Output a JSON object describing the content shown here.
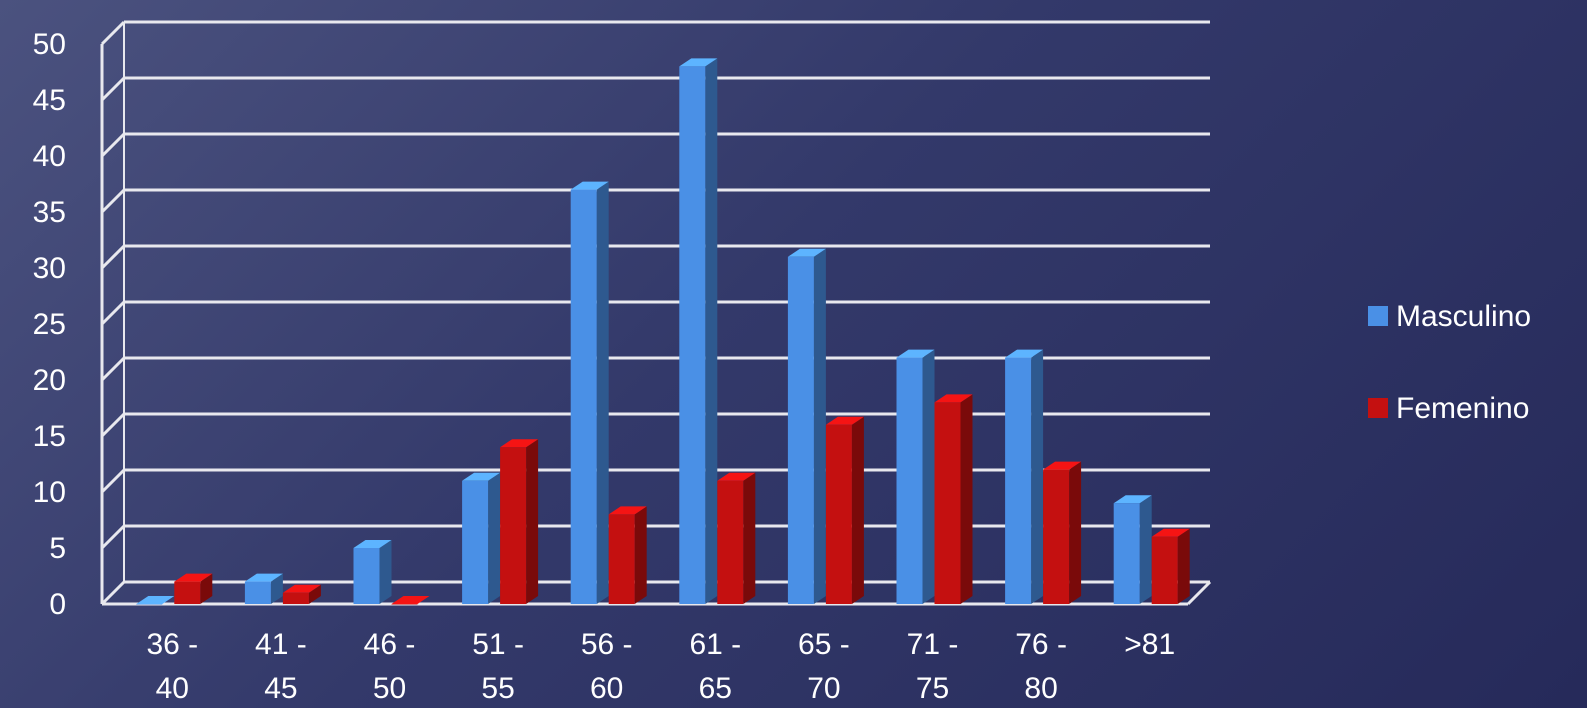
{
  "chart_data": {
    "type": "bar",
    "title": "",
    "xlabel": "",
    "ylabel": "",
    "categories": [
      [
        "36 -",
        "40"
      ],
      [
        "41 -",
        "45"
      ],
      [
        "46 -",
        "50"
      ],
      [
        "51 -",
        "55"
      ],
      [
        "56 -",
        "60"
      ],
      [
        "61 -",
        "65"
      ],
      [
        "65 -",
        "70"
      ],
      [
        "71 -",
        "75"
      ],
      [
        "76 -",
        "80"
      ],
      [
        ">81",
        ""
      ]
    ],
    "series": [
      {
        "name": "Masculino",
        "values": [
          0,
          2,
          5,
          11,
          37,
          48,
          31,
          22,
          22,
          9
        ]
      },
      {
        "name": "Femenino",
        "values": [
          2,
          1,
          0,
          14,
          8,
          11,
          16,
          18,
          12,
          6
        ]
      }
    ],
    "ylim": [
      0,
      50
    ],
    "yticks": [
      "0",
      "5",
      "10",
      "15",
      "20",
      "25",
      "30",
      "35",
      "40",
      "45",
      "50"
    ],
    "grid": true,
    "legend_position": "right",
    "colors": {
      "Masculino": "#4a90e6",
      "Femenino": "#c41010",
      "gridline": "#e8e8ee",
      "text": "#ffffff"
    }
  }
}
